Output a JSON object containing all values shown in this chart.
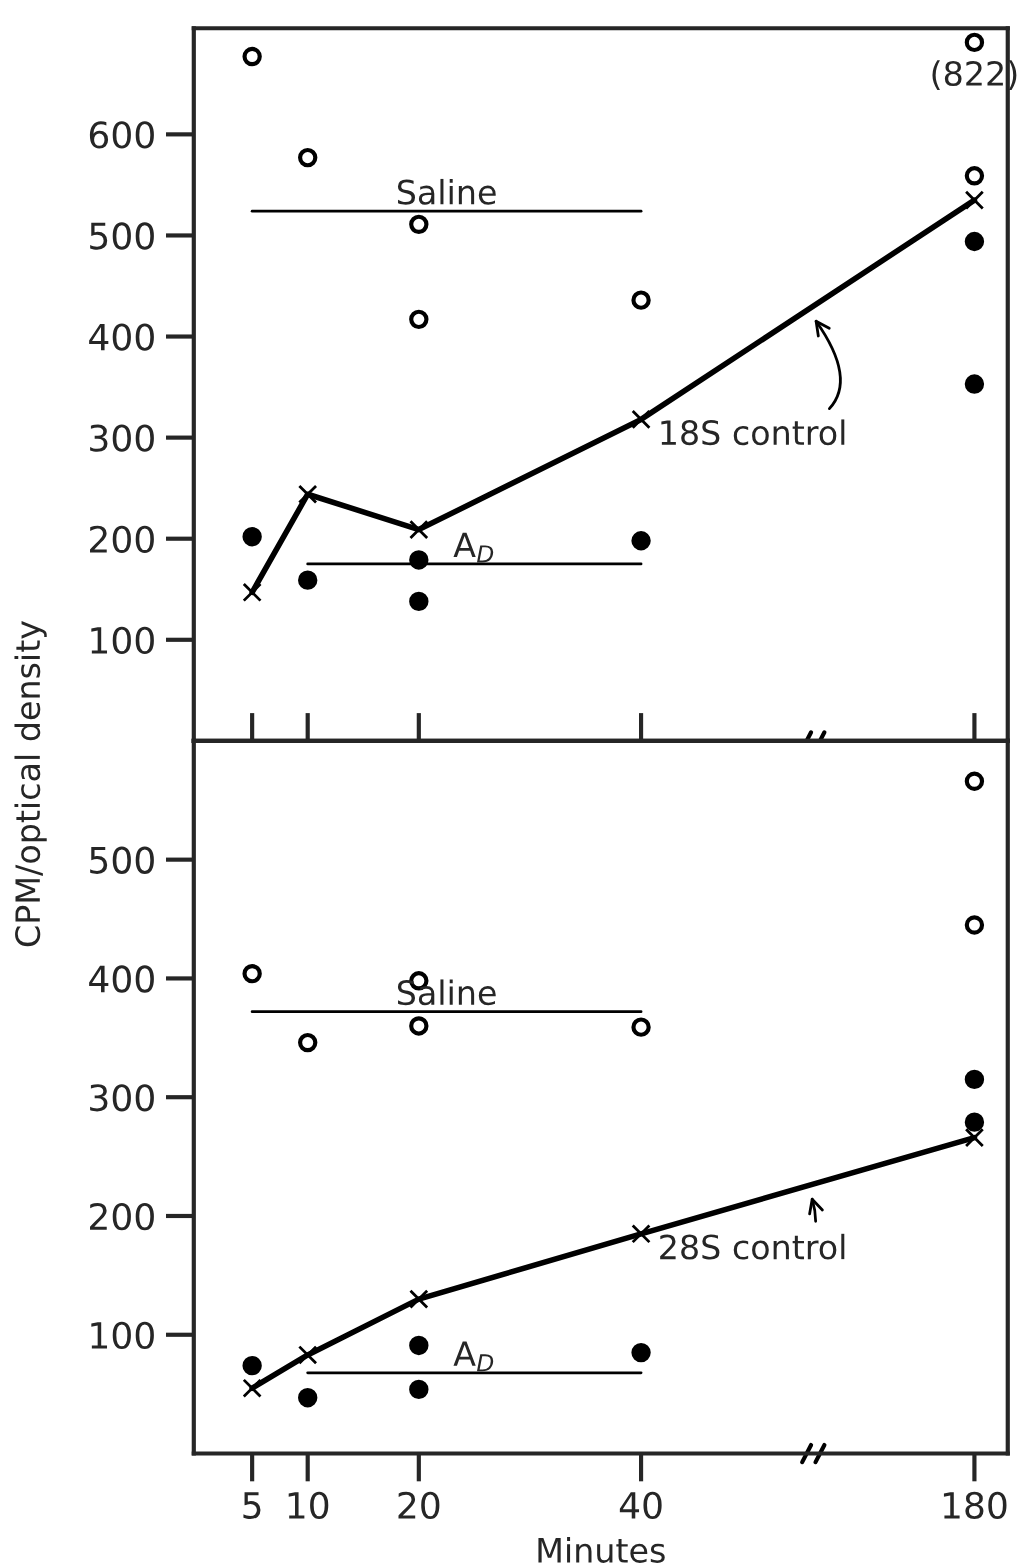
{
  "chart_data": [
    {
      "type": "scatter",
      "ylabel": "CPM/optical density",
      "categories": [
        "5",
        "10",
        null,
        "20",
        null,
        null,
        null,
        "40",
        null,
        null,
        null,
        null,
        null,
        "180"
      ],
      "ylim": [
        0,
        705
      ],
      "yticks": [
        100,
        200,
        300,
        400,
        500,
        600
      ],
      "tick_labels": "y",
      "grid": false,
      "annotations": [
        "(822)"
      ],
      "series": [
        {
          "type": "scatter",
          "marker": "circle",
          "color": "#ffffff",
          "values": [
            677,
            577,
            null,
            511,
            null,
            null,
            null,
            436,
            null,
            null,
            null,
            null,
            null,
            559
          ]
        },
        {
          "type": "scatter",
          "marker": "circle",
          "color": "#ffffff",
          "values": [
            null,
            null,
            null,
            417,
            null,
            null,
            null,
            null,
            null,
            null,
            null,
            null,
            null,
            691
          ]
        },
        {
          "type": "scatter",
          "marker": "circle",
          "color": "#000000",
          "values": [
            202,
            159,
            null,
            179,
            null,
            null,
            null,
            198,
            null,
            null,
            null,
            null,
            null,
            494
          ]
        },
        {
          "type": "scatter",
          "marker": "circle",
          "color": "#000000",
          "values": [
            null,
            null,
            null,
            138,
            null,
            null,
            null,
            null,
            null,
            null,
            null,
            null,
            null,
            353
          ]
        },
        {
          "type": "line",
          "name": "18S control",
          "marker": "cross",
          "color": "#000000",
          "values": [
            147,
            244,
            null,
            209,
            null,
            null,
            null,
            318,
            null,
            null,
            null,
            null,
            null,
            535
          ]
        },
        {
          "type": "line",
          "name": "Saline",
          "marker": "none",
          "color": "#000000",
          "values": [
            524,
            524,
            524,
            524,
            524,
            524,
            524,
            524,
            null,
            null,
            null,
            null,
            null,
            null
          ]
        },
        {
          "type": "line",
          "name": "A$_{D}$",
          "marker": "none",
          "color": "#000000",
          "values": [
            null,
            175,
            175,
            175,
            175,
            175,
            175,
            175,
            null,
            null,
            null,
            null,
            null,
            null
          ]
        }
      ]
    },
    {
      "type": "scatter",
      "xlabel": "Minutes",
      "categories": [
        "5",
        "10",
        null,
        "20",
        null,
        null,
        null,
        "40",
        null,
        null,
        null,
        null,
        null,
        "180"
      ],
      "ylim": [
        0,
        600
      ],
      "yticks": [
        100,
        200,
        300,
        400,
        500
      ],
      "grid": false,
      "series": [
        {
          "type": "scatter",
          "marker": "circle",
          "color": "#ffffff",
          "values": [
            404,
            346,
            null,
            398,
            null,
            null,
            null,
            359,
            null,
            null,
            null,
            null,
            null,
            566
          ]
        },
        {
          "type": "scatter",
          "marker": "circle",
          "color": "#ffffff",
          "values": [
            null,
            null,
            null,
            360,
            null,
            null,
            null,
            null,
            null,
            null,
            null,
            null,
            null,
            445
          ]
        },
        {
          "type": "scatter",
          "marker": "circle",
          "color": "#000000",
          "values": [
            74,
            47,
            null,
            91,
            null,
            null,
            null,
            85,
            null,
            null,
            null,
            null,
            null,
            315
          ]
        },
        {
          "type": "scatter",
          "marker": "circle",
          "color": "#000000",
          "values": [
            null,
            null,
            null,
            54,
            null,
            null,
            null,
            null,
            null,
            null,
            null,
            null,
            null,
            279
          ]
        },
        {
          "type": "line",
          "name": "28S control",
          "marker": "cross",
          "color": "#000000",
          "values": [
            55,
            83,
            null,
            130,
            null,
            null,
            null,
            185,
            null,
            null,
            null,
            null,
            null,
            266
          ]
        },
        {
          "type": "line",
          "name": "Saline",
          "marker": "none",
          "color": "#000000",
          "values": [
            372,
            372,
            372,
            372,
            372,
            372,
            372,
            372,
            null,
            null,
            null,
            null,
            null,
            null
          ]
        },
        {
          "type": "line",
          "name": "A$_{D}$",
          "marker": "none",
          "color": "#000000",
          "values": [
            null,
            68,
            68,
            68,
            68,
            68,
            68,
            68,
            null,
            null,
            null,
            null,
            null,
            null
          ]
        }
      ]
    }
  ]
}
